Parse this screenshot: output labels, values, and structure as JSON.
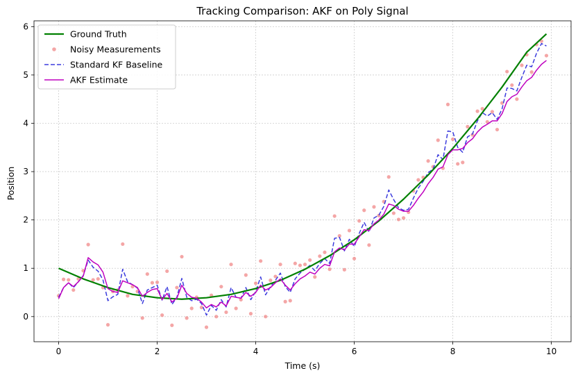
{
  "chart_data": {
    "type": "line",
    "title": "Tracking Comparison: AKF on Poly Signal",
    "xlabel": "Time (s)",
    "ylabel": "Position",
    "xlim": [
      -0.5,
      10.4
    ],
    "ylim": [
      -0.52,
      6.12
    ],
    "xticks": [
      0,
      2,
      4,
      6,
      8,
      10
    ],
    "yticks": [
      0,
      1,
      2,
      3,
      4,
      5,
      6
    ],
    "grid": true,
    "legend_position": "top-left",
    "series": [
      {
        "name": "Ground Truth",
        "kind": "line",
        "color": "#008000",
        "style": "solid",
        "x": [
          0,
          0.5,
          1,
          1.5,
          2,
          2.5,
          3,
          3.5,
          4,
          4.5,
          5,
          5.5,
          6,
          6.5,
          7,
          7.5,
          8,
          8.5,
          9,
          9.5,
          9.9
        ],
        "y": [
          1.0,
          0.78,
          0.6,
          0.46,
          0.39,
          0.36,
          0.39,
          0.46,
          0.58,
          0.75,
          0.98,
          1.26,
          1.59,
          1.98,
          2.43,
          2.93,
          3.48,
          4.09,
          4.75,
          5.47,
          5.85
        ]
      },
      {
        "name": "Noisy Measurements",
        "kind": "scatter",
        "color": "#f08080",
        "x": [
          0.0,
          0.1,
          0.2,
          0.3,
          0.4,
          0.5,
          0.6,
          0.7,
          0.8,
          0.9,
          1.0,
          1.1,
          1.2,
          1.3,
          1.4,
          1.5,
          1.6,
          1.7,
          1.8,
          1.9,
          2.0,
          2.1,
          2.2,
          2.3,
          2.4,
          2.5,
          2.6,
          2.7,
          2.8,
          2.9,
          3.0,
          3.1,
          3.2,
          3.3,
          3.4,
          3.5,
          3.6,
          3.7,
          3.8,
          3.9,
          4.0,
          4.1,
          4.2,
          4.3,
          4.4,
          4.5,
          4.6,
          4.7,
          4.8,
          4.9,
          5.0,
          5.1,
          5.2,
          5.3,
          5.4,
          5.5,
          5.6,
          5.7,
          5.8,
          5.9,
          6.0,
          6.1,
          6.2,
          6.3,
          6.4,
          6.5,
          6.6,
          6.7,
          6.8,
          6.9,
          7.0,
          7.1,
          7.2,
          7.3,
          7.4,
          7.5,
          7.6,
          7.7,
          7.8,
          7.9,
          8.0,
          8.1,
          8.2,
          8.3,
          8.4,
          8.5,
          8.6,
          8.7,
          8.8,
          8.9,
          9.0,
          9.1,
          9.2,
          9.3,
          9.4,
          9.5,
          9.6,
          9.7,
          9.8,
          9.9
        ],
        "y": [
          0.43,
          0.77,
          0.76,
          0.55,
          0.78,
          0.95,
          1.49,
          0.76,
          0.78,
          0.6,
          -0.17,
          0.52,
          0.55,
          1.5,
          0.43,
          0.62,
          0.52,
          -0.03,
          0.88,
          0.7,
          0.71,
          0.03,
          0.94,
          -0.18,
          0.6,
          1.24,
          -0.03,
          0.17,
          0.4,
          0.19,
          -0.22,
          0.44,
          0.0,
          0.62,
          0.09,
          1.08,
          0.17,
          0.35,
          0.86,
          0.06,
          0.69,
          1.15,
          0.0,
          0.75,
          0.83,
          1.08,
          0.31,
          0.33,
          1.1,
          1.06,
          1.08,
          1.17,
          0.82,
          1.25,
          1.33,
          0.98,
          2.08,
          1.67,
          0.97,
          1.78,
          1.2,
          1.98,
          2.2,
          1.48,
          2.27,
          2.09,
          2.38,
          2.89,
          2.14,
          2.01,
          2.04,
          2.16,
          2.6,
          2.83,
          2.88,
          3.22,
          3.1,
          3.65,
          3.07,
          4.39,
          3.67,
          3.16,
          3.19,
          3.93,
          3.76,
          4.25,
          4.3,
          4.03,
          4.24,
          3.87,
          4.42,
          5.07,
          4.79,
          4.5,
          5.2,
          5.42,
          5.06,
          5.63,
          5.7,
          5.4
        ]
      },
      {
        "name": "Standard KF Baseline",
        "kind": "line",
        "color": "#3b3bdd",
        "style": "dashed",
        "x": [
          0.0,
          0.1,
          0.2,
          0.3,
          0.4,
          0.5,
          0.6,
          0.7,
          0.8,
          0.9,
          1.0,
          1.1,
          1.2,
          1.3,
          1.4,
          1.5,
          1.6,
          1.7,
          1.8,
          1.9,
          2.0,
          2.1,
          2.2,
          2.3,
          2.4,
          2.5,
          2.6,
          2.7,
          2.8,
          2.9,
          3.0,
          3.1,
          3.2,
          3.3,
          3.4,
          3.5,
          3.6,
          3.7,
          3.8,
          3.9,
          4.0,
          4.1,
          4.2,
          4.3,
          4.4,
          4.5,
          4.6,
          4.7,
          4.8,
          4.9,
          5.0,
          5.1,
          5.2,
          5.3,
          5.4,
          5.5,
          5.6,
          5.7,
          5.8,
          5.9,
          6.0,
          6.1,
          6.2,
          6.3,
          6.4,
          6.5,
          6.6,
          6.7,
          6.8,
          6.9,
          7.0,
          7.1,
          7.2,
          7.3,
          7.4,
          7.5,
          7.6,
          7.7,
          7.8,
          7.9,
          8.0,
          8.1,
          8.2,
          8.3,
          8.4,
          8.5,
          8.6,
          8.7,
          8.8,
          8.9,
          9.0,
          9.1,
          9.2,
          9.3,
          9.4,
          9.5,
          9.6,
          9.7,
          9.8,
          9.9
        ],
        "y": [
          0.4,
          0.6,
          0.7,
          0.6,
          0.72,
          0.85,
          1.17,
          1.02,
          0.94,
          0.76,
          0.33,
          0.41,
          0.46,
          0.98,
          0.72,
          0.66,
          0.59,
          0.27,
          0.55,
          0.6,
          0.65,
          0.34,
          0.62,
          0.25,
          0.4,
          0.79,
          0.4,
          0.33,
          0.36,
          0.27,
          0.03,
          0.23,
          0.13,
          0.35,
          0.2,
          0.6,
          0.4,
          0.38,
          0.6,
          0.35,
          0.52,
          0.82,
          0.45,
          0.62,
          0.75,
          0.9,
          0.62,
          0.5,
          0.78,
          0.9,
          0.98,
          1.06,
          0.95,
          1.1,
          1.2,
          1.1,
          1.62,
          1.64,
          1.36,
          1.6,
          1.45,
          1.72,
          1.95,
          1.75,
          2.04,
          2.1,
          2.28,
          2.62,
          2.42,
          2.25,
          2.2,
          2.22,
          2.45,
          2.66,
          2.8,
          2.98,
          3.05,
          3.35,
          3.25,
          3.84,
          3.82,
          3.5,
          3.4,
          3.72,
          3.78,
          4.05,
          4.22,
          4.15,
          4.22,
          4.08,
          4.3,
          4.73,
          4.72,
          4.67,
          4.95,
          5.2,
          5.17,
          5.45,
          5.65,
          5.6
        ]
      },
      {
        "name": "AKF Estimate",
        "kind": "line",
        "color": "#bf00bf",
        "style": "solid",
        "x": [
          0.0,
          0.1,
          0.2,
          0.3,
          0.4,
          0.5,
          0.6,
          0.7,
          0.8,
          0.9,
          1.0,
          1.1,
          1.2,
          1.3,
          1.4,
          1.5,
          1.6,
          1.7,
          1.8,
          1.9,
          2.0,
          2.1,
          2.2,
          2.3,
          2.4,
          2.5,
          2.6,
          2.7,
          2.8,
          2.9,
          3.0,
          3.1,
          3.2,
          3.3,
          3.4,
          3.5,
          3.6,
          3.7,
          3.8,
          3.9,
          4.0,
          4.1,
          4.2,
          4.3,
          4.4,
          4.5,
          4.6,
          4.7,
          4.8,
          4.9,
          5.0,
          5.1,
          5.2,
          5.3,
          5.4,
          5.5,
          5.6,
          5.7,
          5.8,
          5.9,
          6.0,
          6.1,
          6.2,
          6.3,
          6.4,
          6.5,
          6.6,
          6.7,
          6.8,
          6.9,
          7.0,
          7.1,
          7.2,
          7.3,
          7.4,
          7.5,
          7.6,
          7.7,
          7.8,
          7.9,
          8.0,
          8.1,
          8.2,
          8.3,
          8.4,
          8.5,
          8.6,
          8.7,
          8.8,
          8.9,
          9.0,
          9.1,
          9.2,
          9.3,
          9.4,
          9.5,
          9.6,
          9.7,
          9.8,
          9.9
        ],
        "y": [
          0.37,
          0.6,
          0.7,
          0.62,
          0.72,
          0.84,
          1.22,
          1.13,
          1.07,
          0.92,
          0.58,
          0.52,
          0.5,
          0.74,
          0.7,
          0.66,
          0.6,
          0.42,
          0.5,
          0.56,
          0.58,
          0.35,
          0.48,
          0.3,
          0.38,
          0.65,
          0.48,
          0.4,
          0.38,
          0.3,
          0.18,
          0.25,
          0.2,
          0.3,
          0.22,
          0.42,
          0.4,
          0.38,
          0.5,
          0.42,
          0.5,
          0.65,
          0.55,
          0.6,
          0.7,
          0.78,
          0.65,
          0.55,
          0.68,
          0.78,
          0.84,
          0.92,
          0.88,
          1.0,
          1.08,
          1.05,
          1.34,
          1.42,
          1.38,
          1.5,
          1.5,
          1.65,
          1.8,
          1.78,
          1.92,
          2.0,
          2.12,
          2.33,
          2.3,
          2.22,
          2.18,
          2.18,
          2.3,
          2.45,
          2.58,
          2.75,
          2.88,
          3.05,
          3.1,
          3.35,
          3.45,
          3.45,
          3.48,
          3.6,
          3.68,
          3.82,
          3.92,
          3.98,
          4.05,
          4.05,
          4.2,
          4.45,
          4.55,
          4.6,
          4.75,
          4.88,
          4.95,
          5.1,
          5.22,
          5.3
        ]
      }
    ]
  }
}
